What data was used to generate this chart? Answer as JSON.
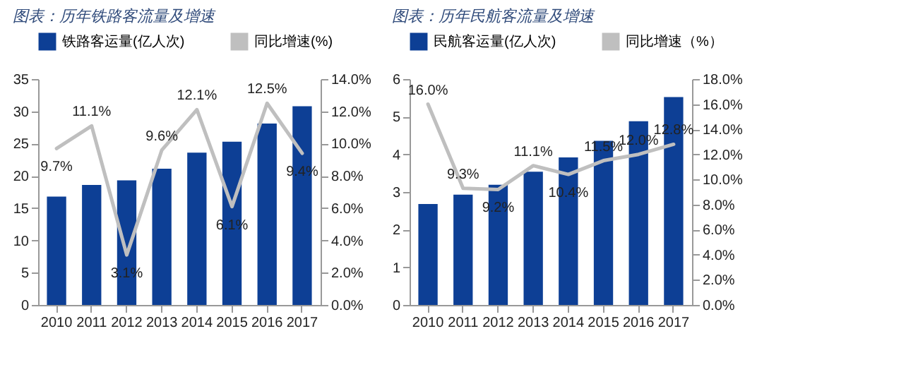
{
  "chart_data": [
    {
      "type": "bar",
      "title": "图表：历年铁路客流量及增速",
      "categories": [
        "2010",
        "2011",
        "2012",
        "2013",
        "2014",
        "2015",
        "2016",
        "2017"
      ],
      "series": [
        {
          "name": "铁路客运量(亿人次)",
          "color": "#0d3f95",
          "values": [
            16.8,
            18.6,
            19.3,
            21.1,
            23.6,
            25.3,
            28.1,
            30.8
          ]
        },
        {
          "name": "同比增速(%)",
          "type": "line",
          "axis": "y2",
          "color": "#bfbfbf",
          "values": [
            9.7,
            11.1,
            3.1,
            9.6,
            12.1,
            6.1,
            12.5,
            9.4
          ],
          "value_labels": [
            "9.7%",
            "11.1%",
            "3.1%",
            "9.6%",
            "12.1%",
            "6.1%",
            "12.5%",
            "9.4%"
          ]
        }
      ],
      "ylim": [
        0,
        35
      ],
      "yticks": [
        0,
        5,
        10,
        15,
        20,
        25,
        30,
        35
      ],
      "y2lim": [
        0,
        14
      ],
      "y2ticks": [
        {
          "value": 0,
          "label": "0.0%"
        },
        {
          "value": 2,
          "label": "2.0%"
        },
        {
          "value": 4,
          "label": "4.0%"
        },
        {
          "value": 6,
          "label": "6.0%"
        },
        {
          "value": 8,
          "label": "8.0%"
        },
        {
          "value": 10,
          "label": "10.0%"
        },
        {
          "value": 12,
          "label": "12.0%"
        },
        {
          "value": 14,
          "label": "14.0%"
        }
      ],
      "legend": "top",
      "grid": false,
      "marker": "none",
      "line_style": "solid"
    },
    {
      "type": "bar",
      "title": "图表：历年民航客流量及增速",
      "categories": [
        "2010",
        "2011",
        "2012",
        "2013",
        "2014",
        "2015",
        "2016",
        "2017"
      ],
      "series": [
        {
          "name": "民航客运量(亿人次)",
          "color": "#0d3f95",
          "values": [
            2.68,
            2.93,
            3.19,
            3.54,
            3.92,
            4.36,
            4.88,
            5.52
          ]
        },
        {
          "name": "同比增速（%）",
          "type": "line",
          "axis": "y2",
          "color": "#bfbfbf",
          "values": [
            16.0,
            9.3,
            9.2,
            11.1,
            10.4,
            11.5,
            12.0,
            12.8
          ],
          "value_labels": [
            "16.0%",
            "9.3%",
            "9.2%",
            "11.1%",
            "10.4%",
            "11.5%",
            "12.0%",
            "12.8%"
          ]
        }
      ],
      "ylim": [
        0,
        6
      ],
      "yticks": [
        0,
        1,
        2,
        3,
        4,
        5,
        6
      ],
      "y2lim": [
        0,
        18
      ],
      "y2ticks": [
        {
          "value": 0,
          "label": "0.0%"
        },
        {
          "value": 2,
          "label": "2.0%"
        },
        {
          "value": 4,
          "label": "4.0%"
        },
        {
          "value": 6,
          "label": "6.0%"
        },
        {
          "value": 8,
          "label": "8.0%"
        },
        {
          "value": 10,
          "label": "10.0%"
        },
        {
          "value": 12,
          "label": "12.0%"
        },
        {
          "value": 14,
          "label": "14.0%"
        },
        {
          "value": 16,
          "label": "16.0%"
        },
        {
          "value": 18,
          "label": "18.0%"
        }
      ],
      "legend": "top",
      "grid": false,
      "marker": "none",
      "line_style": "solid"
    }
  ]
}
